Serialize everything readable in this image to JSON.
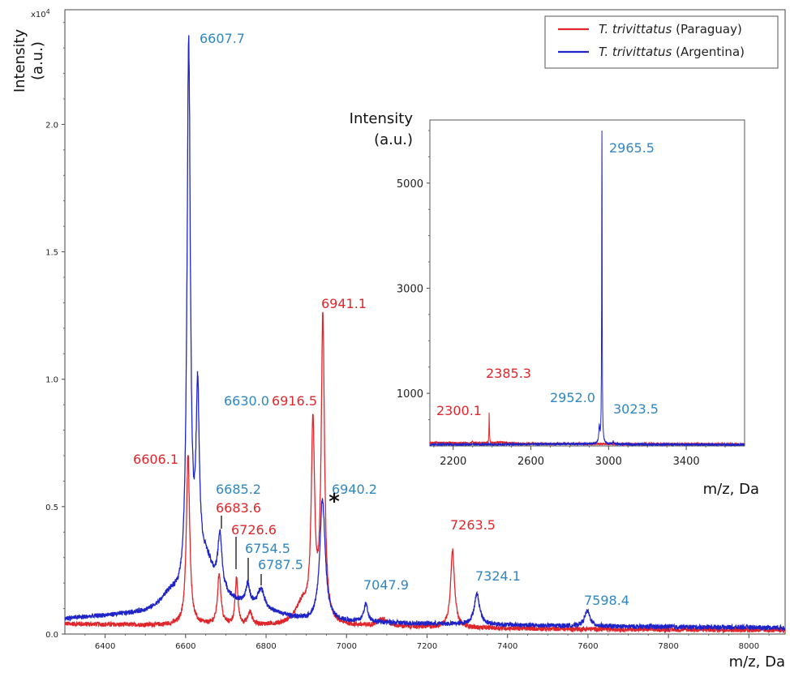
{
  "chart_data": {
    "type": "line",
    "main": {
      "xlabel": "m/z, Da",
      "ylabel_line1": "Intensity",
      "ylabel_line2": "(a.u.)",
      "y_multiplier": "x10",
      "y_multiplier_exp": "4",
      "xlim": [
        6300,
        8090
      ],
      "ylim": [
        0,
        2.45
      ],
      "x_ticks": [
        6400,
        6600,
        6800,
        7000,
        7200,
        7400,
        7600,
        7800,
        8000
      ],
      "y_ticks": [
        0.0,
        0.5,
        1.0,
        1.5,
        2.0
      ],
      "y_tick_labels": [
        "0.0",
        "0.5",
        "1.0",
        "1.5",
        "2.0"
      ],
      "grid": false,
      "series": [
        {
          "name_italic": "T. trivittatus",
          "name_rest": " (Paraguay)",
          "color": "#e0262b",
          "baseline": [
            [
              6300,
              0.04
            ],
            [
              6500,
              0.035
            ],
            [
              7000,
              0.03
            ],
            [
              7500,
              0.02
            ],
            [
              8090,
              0.015
            ]
          ],
          "peaks": [
            {
              "x": 6606.1,
              "h": 0.67,
              "w": 5
            },
            {
              "x": 6683.6,
              "h": 0.2,
              "w": 5
            },
            {
              "x": 6726.6,
              "h": 0.18,
              "w": 4
            },
            {
              "x": 6760,
              "h": 0.05,
              "w": 6
            },
            {
              "x": 6890,
              "h": 0.08,
              "w": 20
            },
            {
              "x": 6916.5,
              "h": 0.76,
              "w": 5
            },
            {
              "x": 6941.1,
              "h": 1.18,
              "w": 5
            },
            {
              "x": 7090,
              "h": 0.03,
              "w": 15
            },
            {
              "x": 7263.5,
              "h": 0.3,
              "w": 6
            }
          ]
        },
        {
          "name_italic": "T. trivittatus",
          "name_rest": " (Argentina)",
          "color": "#1f24c9",
          "baseline": [
            [
              6300,
              0.06
            ],
            [
              6500,
              0.08
            ],
            [
              6700,
              0.12
            ],
            [
              6900,
              0.05
            ],
            [
              7200,
              0.04
            ],
            [
              7600,
              0.03
            ],
            [
              8090,
              0.025
            ]
          ],
          "peaks": [
            {
              "x": 6560,
              "h": 0.05,
              "w": 25
            },
            {
              "x": 6607.7,
              "h": 2.17,
              "w": 5
            },
            {
              "x": 6630.0,
              "h": 0.7,
              "w": 5
            },
            {
              "x": 6650,
              "h": 0.16,
              "w": 25
            },
            {
              "x": 6685.2,
              "h": 0.22,
              "w": 6
            },
            {
              "x": 6754.5,
              "h": 0.08,
              "w": 6
            },
            {
              "x": 6787.5,
              "h": 0.08,
              "w": 10
            },
            {
              "x": 6940.2,
              "h": 0.48,
              "w": 8
            },
            {
              "x": 7047.9,
              "h": 0.07,
              "w": 6
            },
            {
              "x": 7324.1,
              "h": 0.12,
              "w": 8
            },
            {
              "x": 7598.4,
              "h": 0.06,
              "w": 8
            }
          ]
        }
      ],
      "annotations": [
        {
          "text": "6607.7",
          "x": 6607.7,
          "color": "#2f86c0"
        },
        {
          "text": "6630.0",
          "x": 6630.0,
          "color": "#2f86c0"
        },
        {
          "text": "6606.1",
          "x": 6606.1,
          "color": "#e0262b"
        },
        {
          "text": "6685.2",
          "x": 6685.2,
          "color": "#2f86c0"
        },
        {
          "text": "6683.6",
          "x": 6683.6,
          "color": "#e0262b"
        },
        {
          "text": "6726.6",
          "x": 6726.6,
          "color": "#e0262b"
        },
        {
          "text": "6754.5",
          "x": 6754.5,
          "color": "#2f86c0"
        },
        {
          "text": "6787.5",
          "x": 6787.5,
          "color": "#2f86c0"
        },
        {
          "text": "6916.5",
          "x": 6916.5,
          "color": "#e0262b"
        },
        {
          "text": "6941.1",
          "x": 6941.1,
          "color": "#e0262b"
        },
        {
          "text": "6940.2",
          "x": 6940.2,
          "color": "#2f86c0"
        },
        {
          "text": "*",
          "x": 6975,
          "color": "#111111"
        },
        {
          "text": "7047.9",
          "x": 7047.9,
          "color": "#2f86c0"
        },
        {
          "text": "7263.5",
          "x": 7263.5,
          "color": "#e0262b"
        },
        {
          "text": "7324.1",
          "x": 7324.1,
          "color": "#2f86c0"
        },
        {
          "text": "7598.4",
          "x": 7598.4,
          "color": "#2f86c0"
        }
      ],
      "legend_position": "top-right"
    },
    "inset": {
      "xlabel": "m/z, Da",
      "ylabel_line1": "Intensity",
      "ylabel_line2": "(a.u.)",
      "xlim": [
        2080,
        3700
      ],
      "ylim": [
        0,
        6200
      ],
      "x_ticks": [
        2200,
        2600,
        3000,
        3400
      ],
      "y_ticks": [
        1000,
        3000,
        5000
      ],
      "series": [
        {
          "color": "#e0262b",
          "baseline": [
            [
              2080,
              60
            ],
            [
              2400,
              50
            ],
            [
              2700,
              40
            ],
            [
              3000,
              40
            ],
            [
              3700,
              35
            ]
          ],
          "peaks": [
            {
              "x": 2300.1,
              "h": 40,
              "w": 3
            },
            {
              "x": 2385.3,
              "h": 560,
              "w": 1.5
            },
            {
              "x": 2450,
              "h": 20,
              "w": 30
            }
          ]
        },
        {
          "color": "#1f24c9",
          "baseline": [
            [
              2080,
              30
            ],
            [
              2500,
              30
            ],
            [
              2900,
              40
            ],
            [
              3100,
              30
            ],
            [
              3700,
              25
            ]
          ],
          "peaks": [
            {
              "x": 2952.0,
              "h": 300,
              "w": 3
            },
            {
              "x": 2965.5,
              "h": 5970,
              "w": 1.5
            },
            {
              "x": 3023.5,
              "h": 50,
              "w": 3
            }
          ]
        }
      ],
      "annotations": [
        {
          "text": "2965.5",
          "x": 2965.5,
          "color": "#2f86c0"
        },
        {
          "text": "2385.3",
          "x": 2385.3,
          "color": "#e0262b"
        },
        {
          "text": "2300.1",
          "x": 2300.1,
          "color": "#e0262b"
        },
        {
          "text": "2952.0",
          "x": 2952.0,
          "color": "#2f86c0"
        },
        {
          "text": "3023.5",
          "x": 3023.5,
          "color": "#2f86c0"
        }
      ]
    }
  }
}
